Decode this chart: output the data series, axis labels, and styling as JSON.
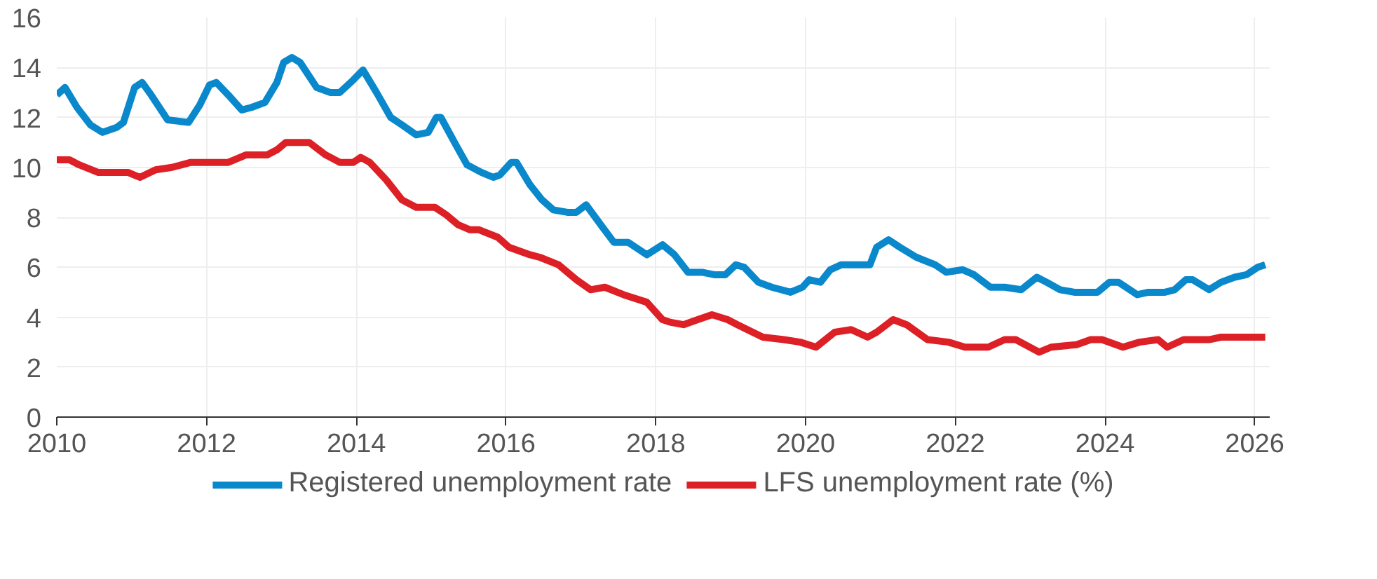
{
  "chart_data": {
    "type": "line",
    "xlim": [
      2010,
      2026.2
    ],
    "ylim": [
      0,
      16
    ],
    "xticks": [
      2010,
      2012,
      2014,
      2016,
      2018,
      2020,
      2022,
      2024,
      2026
    ],
    "yticks": [
      0,
      2,
      4,
      6,
      8,
      10,
      12,
      14,
      16
    ],
    "grid": true,
    "legend": "bottom",
    "line_style": "solid",
    "marker": "none",
    "series": [
      {
        "name": "Registered unemployment rate",
        "color": "#0a88cc",
        "x": [
          2010.0,
          2010.11,
          2010.27,
          2010.45,
          2010.61,
          2010.8,
          2010.89,
          2011.04,
          2011.14,
          2011.26,
          2011.48,
          2011.76,
          2011.91,
          2012.04,
          2012.13,
          2012.29,
          2012.47,
          2012.6,
          2012.78,
          2012.94,
          2013.03,
          2013.14,
          2013.25,
          2013.47,
          2013.65,
          2013.78,
          2013.96,
          2014.09,
          2014.27,
          2014.46,
          2014.61,
          2014.8,
          2014.96,
          2015.07,
          2015.13,
          2015.33,
          2015.48,
          2015.67,
          2015.83,
          2015.92,
          2016.07,
          2016.14,
          2016.32,
          2016.48,
          2016.63,
          2016.82,
          2016.94,
          2017.07,
          2017.29,
          2017.44,
          2017.63,
          2017.88,
          2018.09,
          2018.25,
          2018.43,
          2018.62,
          2018.78,
          2018.93,
          2019.07,
          2019.18,
          2019.37,
          2019.55,
          2019.8,
          2019.96,
          2020.05,
          2020.2,
          2020.33,
          2020.48,
          2020.86,
          2020.95,
          2021.11,
          2021.26,
          2021.48,
          2021.73,
          2021.88,
          2022.1,
          2022.25,
          2022.47,
          2022.66,
          2022.88,
          2023.09,
          2023.22,
          2023.4,
          2023.59,
          2023.9,
          2024.06,
          2024.18,
          2024.43,
          2024.58,
          2024.8,
          2024.93,
          2025.08,
          2025.17,
          2025.39,
          2025.55,
          2025.73,
          2025.89,
          2026.04,
          2026.14
        ],
        "values": [
          12.9,
          13.2,
          12.4,
          11.7,
          11.4,
          11.6,
          11.8,
          13.2,
          13.4,
          12.9,
          11.9,
          11.8,
          12.5,
          13.3,
          13.4,
          12.9,
          12.3,
          12.4,
          12.6,
          13.4,
          14.2,
          14.4,
          14.2,
          13.2,
          13.0,
          13.0,
          13.5,
          13.9,
          13.0,
          12.0,
          11.7,
          11.3,
          11.4,
          12.0,
          12.0,
          10.9,
          10.1,
          9.8,
          9.6,
          9.7,
          10.2,
          10.2,
          9.3,
          8.7,
          8.3,
          8.2,
          8.2,
          8.5,
          7.6,
          7.0,
          7.0,
          6.5,
          6.9,
          6.5,
          5.8,
          5.8,
          5.7,
          5.7,
          6.1,
          6.0,
          5.4,
          5.2,
          5.0,
          5.2,
          5.5,
          5.4,
          5.9,
          6.1,
          6.1,
          6.8,
          7.1,
          6.8,
          6.4,
          6.1,
          5.8,
          5.9,
          5.7,
          5.2,
          5.2,
          5.1,
          5.6,
          5.4,
          5.1,
          5.0,
          5.0,
          5.4,
          5.4,
          4.9,
          5.0,
          5.0,
          5.1,
          5.5,
          5.5,
          5.1,
          5.4,
          5.6,
          5.7,
          6.0,
          6.1
        ]
      },
      {
        "name": "LFS unemployment rate (%)",
        "color": "#dd1f26",
        "x": [
          2010.0,
          2010.17,
          2010.3,
          2010.55,
          2010.95,
          2011.11,
          2011.32,
          2011.54,
          2011.79,
          2012.29,
          2012.53,
          2012.81,
          2012.94,
          2013.06,
          2013.22,
          2013.37,
          2013.59,
          2013.78,
          2013.96,
          2014.06,
          2014.18,
          2014.4,
          2014.61,
          2014.8,
          2015.05,
          2015.2,
          2015.36,
          2015.52,
          2015.64,
          2015.89,
          2016.04,
          2016.32,
          2016.45,
          2016.7,
          2016.94,
          2017.13,
          2017.32,
          2017.57,
          2017.88,
          2018.09,
          2018.19,
          2018.37,
          2018.56,
          2018.75,
          2018.96,
          2019.09,
          2019.43,
          2019.71,
          2019.93,
          2020.14,
          2020.39,
          2020.61,
          2020.83,
          2020.95,
          2021.17,
          2021.35,
          2021.63,
          2021.91,
          2022.13,
          2022.44,
          2022.66,
          2022.81,
          2023.12,
          2023.28,
          2023.62,
          2023.81,
          2023.96,
          2024.24,
          2024.46,
          2024.71,
          2024.83,
          2025.05,
          2025.3,
          2025.39,
          2025.55,
          2026.14
        ],
        "values": [
          10.3,
          10.3,
          10.1,
          9.8,
          9.8,
          9.6,
          9.9,
          10.0,
          10.2,
          10.2,
          10.5,
          10.5,
          10.7,
          11.0,
          11.0,
          11.0,
          10.5,
          10.2,
          10.2,
          10.4,
          10.2,
          9.5,
          8.7,
          8.4,
          8.4,
          8.1,
          7.7,
          7.5,
          7.5,
          7.2,
          6.8,
          6.5,
          6.4,
          6.1,
          5.5,
          5.1,
          5.2,
          4.9,
          4.6,
          3.9,
          3.8,
          3.7,
          3.9,
          4.1,
          3.9,
          3.7,
          3.2,
          3.1,
          3.0,
          2.8,
          3.4,
          3.5,
          3.2,
          3.4,
          3.9,
          3.7,
          3.1,
          3.0,
          2.8,
          2.8,
          3.1,
          3.1,
          2.6,
          2.8,
          2.9,
          3.1,
          3.1,
          2.8,
          3.0,
          3.1,
          2.8,
          3.1,
          3.1,
          3.1,
          3.2,
          3.2
        ]
      }
    ]
  }
}
